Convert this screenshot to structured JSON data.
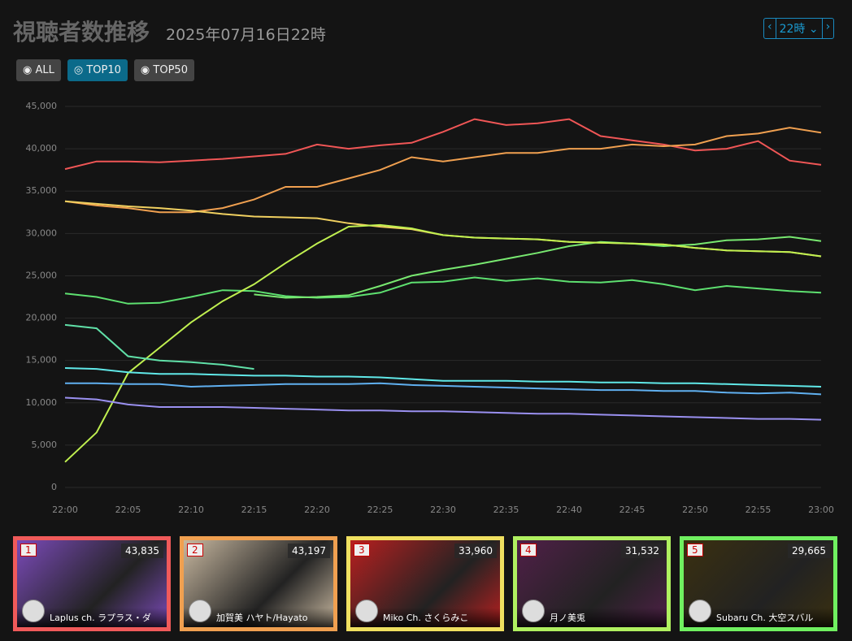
{
  "header": {
    "title": "視聴者数推移",
    "subtitle": "2025年07月16日22時"
  },
  "filters": [
    {
      "label": "ALL",
      "active": false
    },
    {
      "label": "TOP10",
      "active": true
    },
    {
      "label": "TOP50",
      "active": false
    }
  ],
  "hour_select": "22時",
  "chart_data": {
    "type": "line",
    "x": [
      "22:00",
      null,
      "22:05",
      null,
      "22:10",
      null,
      "22:15",
      null,
      "22:20",
      null,
      "22:25",
      null,
      "22:30",
      null,
      "22:35",
      null,
      "22:40",
      null,
      "22:45",
      null,
      "22:50",
      null,
      "22:55",
      null,
      "23:00"
    ],
    "series": [
      {
        "color": "#f05656",
        "values": [
          37600,
          38500,
          38500,
          38400,
          38600,
          38800,
          39100,
          39400,
          40500,
          40000,
          40400,
          40700,
          42000,
          43500,
          42800,
          43000,
          43500,
          41500,
          41000,
          40500,
          39800,
          40000,
          40900,
          38600,
          38100
        ]
      },
      {
        "color": "#f0a050",
        "values": [
          33800,
          33300,
          33000,
          32500,
          32500,
          33000,
          34000,
          35500,
          35500,
          36500,
          37500,
          39000,
          38500,
          39000,
          39500,
          39500,
          40000,
          40000,
          40500,
          40300,
          40500,
          41500,
          41800,
          42500,
          41900
        ]
      },
      {
        "color": "#f0d060",
        "values": [
          33800,
          33500,
          33200,
          33000,
          32700,
          32300,
          32000,
          31900,
          31800,
          31200,
          30800,
          30500,
          29800,
          29500,
          29400,
          29300,
          29000,
          28900,
          28800,
          28700,
          28300,
          28000,
          27900,
          27800,
          27300
        ]
      },
      {
        "color": "#5ee070",
        "values": [
          22900,
          22500,
          21700,
          21800,
          22500,
          23300,
          23200,
          22600,
          22400,
          22500,
          23000,
          24200,
          24300,
          24800,
          24400,
          24700,
          24300,
          24200,
          24500,
          24000,
          23300,
          23800,
          23500,
          23200,
          23000
        ]
      },
      {
        "color": "#78e870",
        "values": [
          null,
          null,
          null,
          null,
          null,
          null,
          22800,
          22400,
          22500,
          22700,
          23800,
          25000,
          25700,
          26300,
          27000,
          27700,
          28500,
          29000,
          28800,
          28500,
          28700,
          29200,
          29300,
          29600,
          29100
        ]
      },
      {
        "color": "#c0f050",
        "values": [
          3000,
          6500,
          13500,
          16500,
          19500,
          22000,
          24000,
          26500,
          28800,
          30800,
          31000,
          30600,
          29800,
          29500,
          29400,
          29300,
          29000,
          28900,
          28800,
          28700,
          28300,
          28000,
          27900,
          27800,
          27300
        ]
      },
      {
        "color": "#60e0a8",
        "values": [
          19200,
          18800,
          15500,
          15000,
          14800,
          14500,
          14000,
          null,
          null,
          null,
          null,
          null,
          null,
          null,
          null,
          null,
          null,
          null,
          null,
          null,
          null,
          null,
          null,
          null,
          null
        ]
      },
      {
        "color": "#60e8e8",
        "values": [
          14100,
          14000,
          13600,
          13400,
          13400,
          13300,
          13200,
          13200,
          13100,
          13100,
          13000,
          12800,
          12600,
          12600,
          12600,
          12500,
          12500,
          12400,
          12400,
          12300,
          12300,
          12200,
          12100,
          12000,
          11900
        ]
      },
      {
        "color": "#60b0f0",
        "values": [
          12300,
          12300,
          12200,
          12200,
          11900,
          12000,
          12100,
          12200,
          12200,
          12200,
          12300,
          12100,
          12000,
          11900,
          11800,
          11700,
          11600,
          11500,
          11500,
          11400,
          11400,
          11200,
          11100,
          11200,
          11000
        ]
      },
      {
        "color": "#9a90f0",
        "values": [
          10600,
          10400,
          9800,
          9500,
          9500,
          9500,
          9400,
          9300,
          9200,
          9100,
          9100,
          9000,
          9000,
          8900,
          8800,
          8700,
          8700,
          8600,
          8500,
          8400,
          8300,
          8200,
          8100,
          8100,
          8000
        ]
      }
    ],
    "ylim": [
      0,
      45000
    ],
    "yticks": [
      0,
      {
        "value": 5000,
        "label": "5,000"
      },
      {
        "value": 10000,
        "label": "10,000"
      },
      {
        "value": 15000,
        "label": "15,000"
      },
      {
        "value": 20000,
        "label": "20,000"
      },
      {
        "value": 25000,
        "label": "25,000"
      },
      {
        "value": 30000,
        "label": "30,000"
      },
      {
        "value": 35000,
        "label": "35,000"
      },
      {
        "value": 40000,
        "label": "40,000"
      },
      {
        "value": 45000,
        "label": "45,000"
      }
    ],
    "grid": true
  },
  "cards": [
    {
      "rank": 1,
      "viewers": "43,835",
      "name": "Laplus ch. ラプラス・ダ",
      "color": "#f05a5a",
      "bg": "#7a4ab8"
    },
    {
      "rank": 2,
      "viewers": "43,197",
      "name": "加賀美 ハヤト/Hayato",
      "color": "#f0a050",
      "bg": "#c8b8a0"
    },
    {
      "rank": 3,
      "viewers": "33,960",
      "name": "Miko Ch. さくらみこ",
      "color": "#f0e060",
      "bg": "#b82020"
    },
    {
      "rank": 4,
      "viewers": "31,532",
      "name": "月ノ美兎",
      "color": "#b0f060",
      "bg": "#502048"
    },
    {
      "rank": 5,
      "viewers": "29,665",
      "name": "Subaru Ch. 大空スバル",
      "color": "#70f060",
      "bg": "#3a3010"
    }
  ]
}
